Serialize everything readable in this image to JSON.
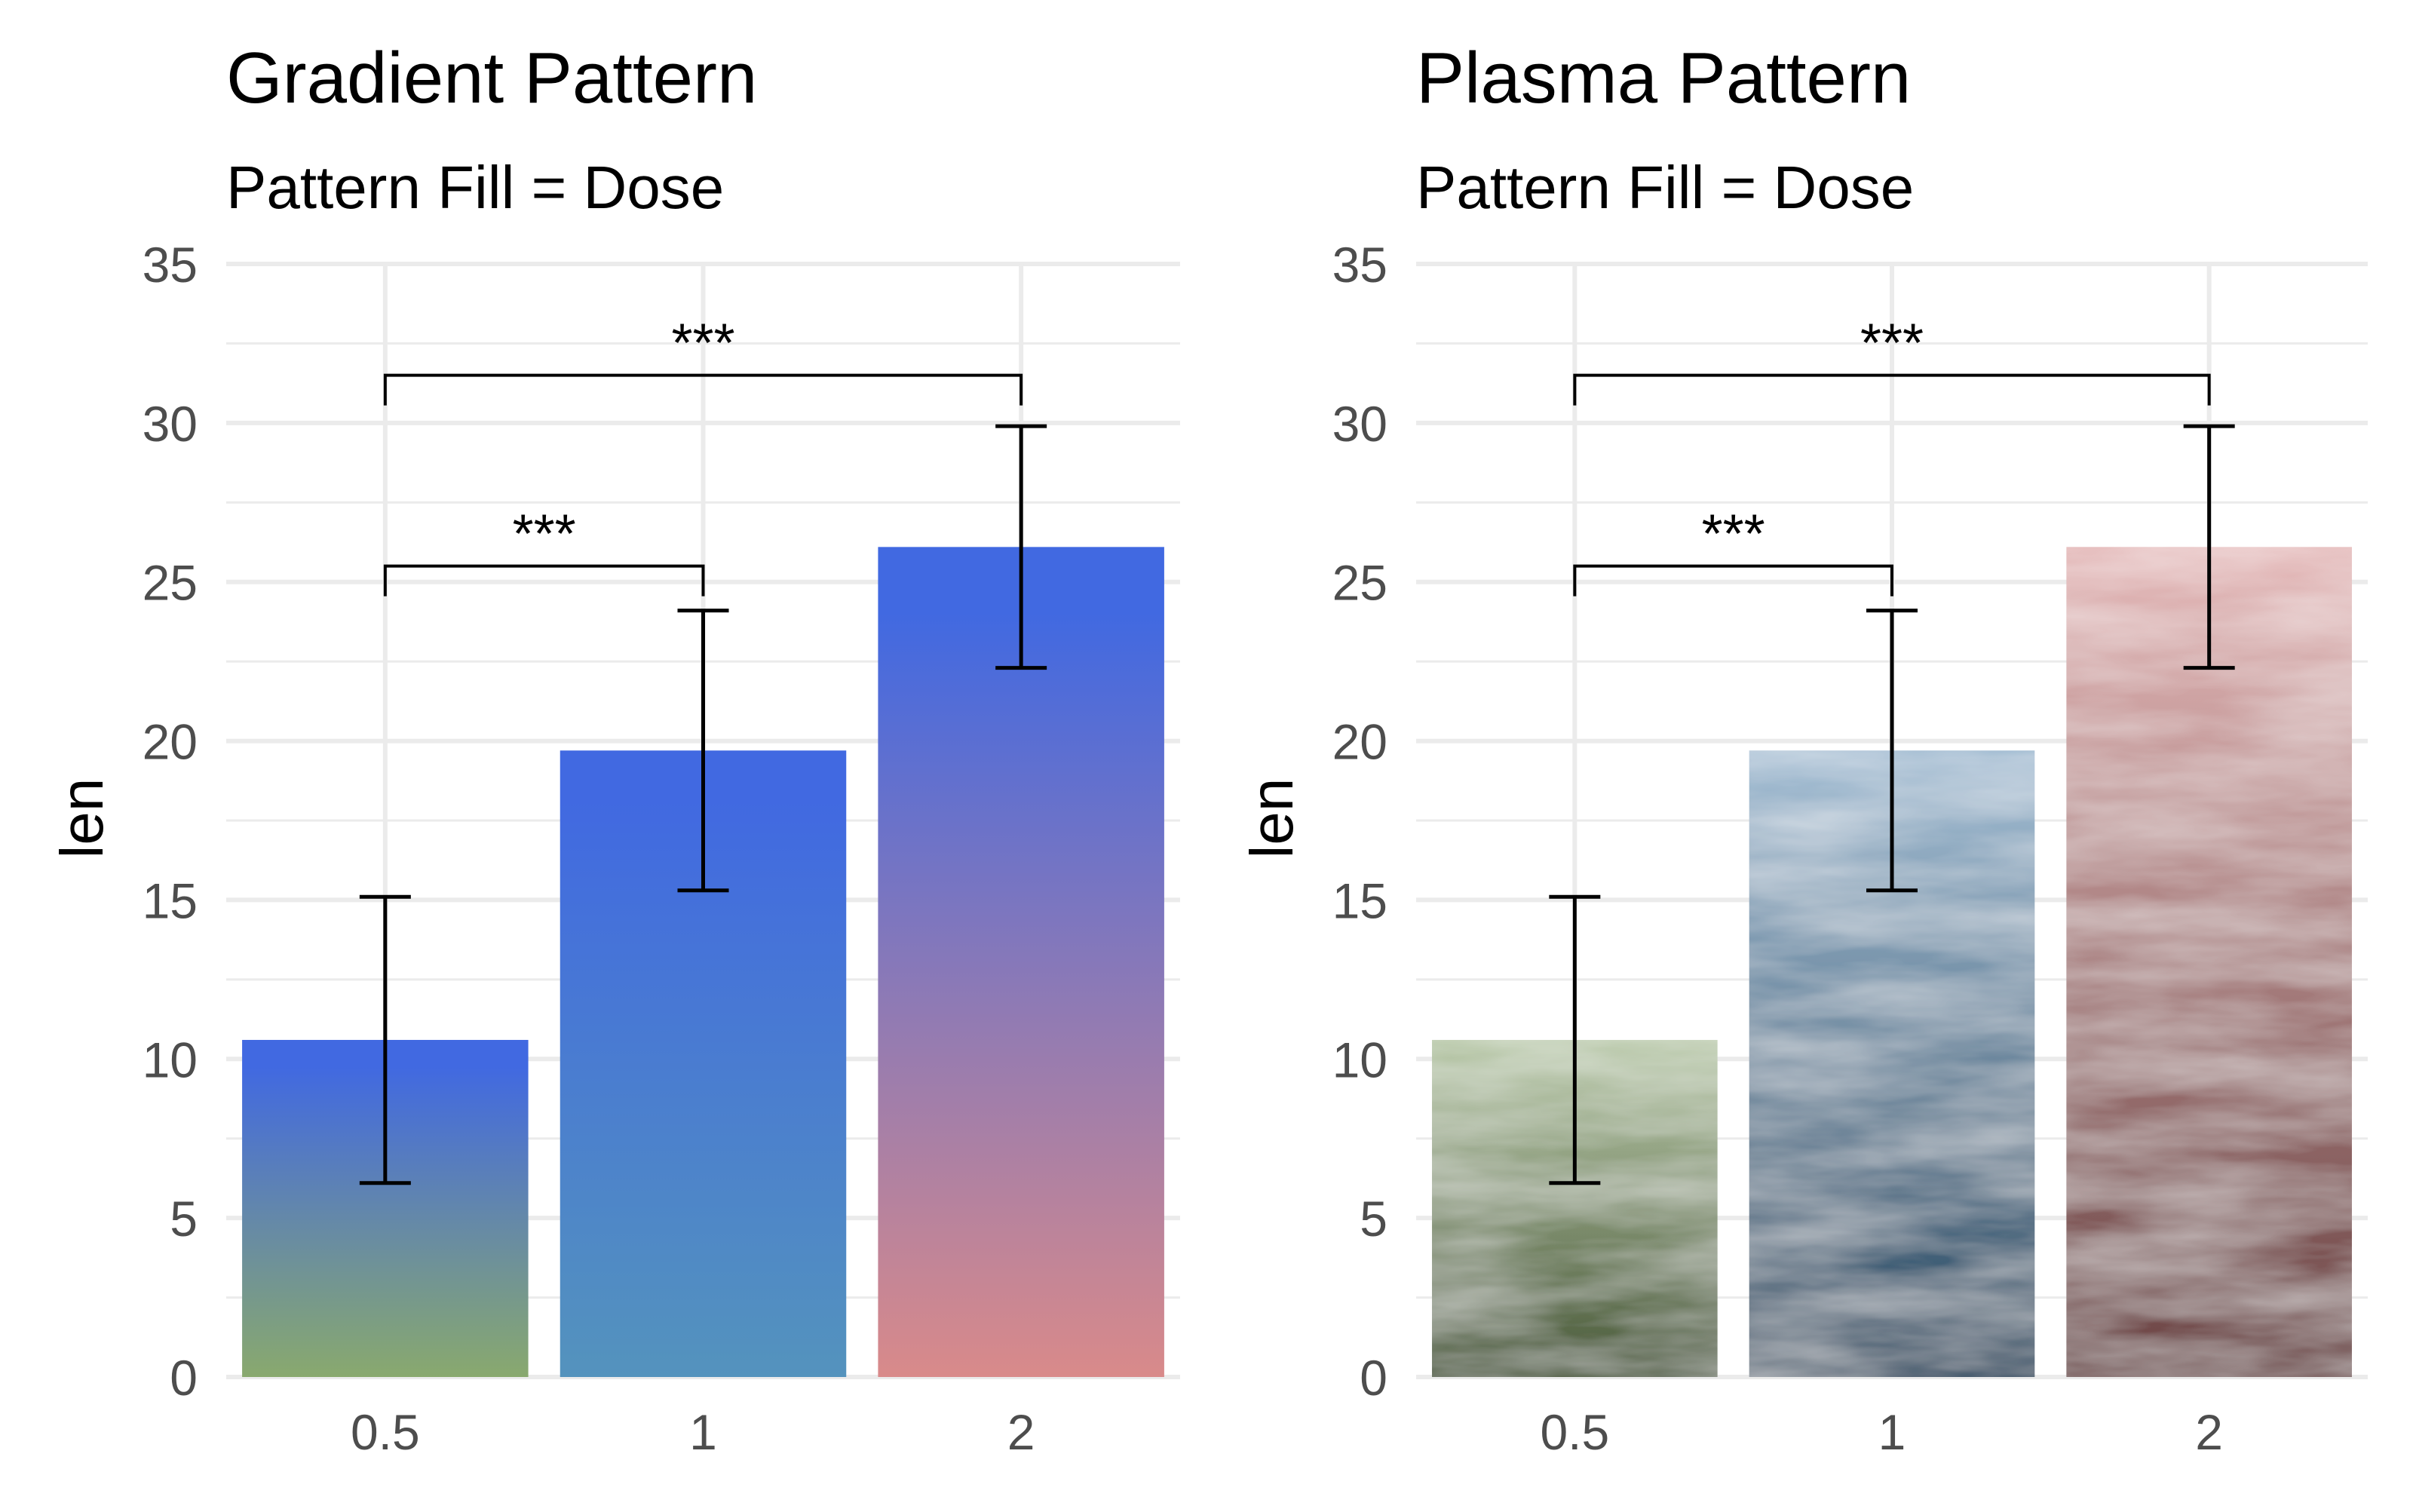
{
  "chart_data": [
    {
      "type": "bar",
      "title": "Gradient Pattern",
      "subtitle": "Pattern Fill = Dose",
      "xlabel": "",
      "ylabel": "len",
      "categories": [
        "0.5",
        "1",
        "2"
      ],
      "values": [
        10.6,
        19.7,
        26.1
      ],
      "error_low": [
        6.1,
        15.3,
        22.3
      ],
      "error_high": [
        15.1,
        24.1,
        29.9
      ],
      "ylim": [
        0,
        35
      ],
      "yticks": [
        "0",
        "5",
        "10",
        "15",
        "20",
        "25",
        "30",
        "35"
      ],
      "grid": true,
      "fill": "gradient",
      "bar_colors": [
        {
          "top": "#4169e1",
          "bottom": "#89a96e"
        },
        {
          "top": "#4169e1",
          "bottom": "#5493bd"
        },
        {
          "top": "#4169e1",
          "bottom": "#d98a8a"
        }
      ],
      "annotations": [
        {
          "from": "0.5",
          "to": "1",
          "label": "***",
          "y": 25.5
        },
        {
          "from": "0.5",
          "to": "2",
          "label": "***",
          "y": 31.5
        }
      ]
    },
    {
      "type": "bar",
      "title": "Plasma Pattern",
      "subtitle": "Pattern Fill = Dose",
      "xlabel": "",
      "ylabel": "len",
      "categories": [
        "0.5",
        "1",
        "2"
      ],
      "values": [
        10.6,
        19.7,
        26.1
      ],
      "error_low": [
        6.1,
        15.3,
        22.3
      ],
      "error_high": [
        15.1,
        24.1,
        29.9
      ],
      "ylim": [
        0,
        35
      ],
      "yticks": [
        "0",
        "5",
        "10",
        "15",
        "20",
        "25",
        "30",
        "35"
      ],
      "grid": true,
      "fill": "plasma",
      "bar_colors": [
        {
          "top": "#b9c9a9",
          "bottom": "#4a5a3a"
        },
        {
          "top": "#a3bdd3",
          "bottom": "#2b4a62"
        },
        {
          "top": "#e4b8b8",
          "bottom": "#6b4444"
        }
      ],
      "annotations": [
        {
          "from": "0.5",
          "to": "1",
          "label": "***",
          "y": 25.5
        },
        {
          "from": "0.5",
          "to": "2",
          "label": "***",
          "y": 31.5
        }
      ]
    }
  ]
}
